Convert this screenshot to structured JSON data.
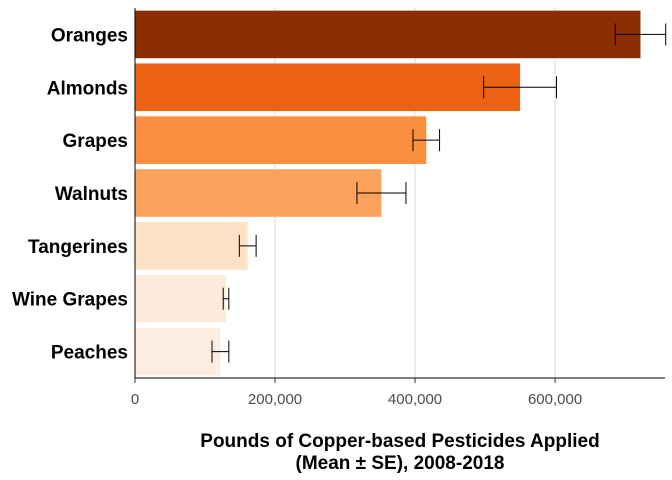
{
  "chart_data": {
    "type": "bar",
    "orientation": "horizontal",
    "title": "",
    "xlabel": [
      "Pounds of Copper-based Pesticides Applied",
      "(Mean ± SE), 2008-2018"
    ],
    "ylabel": "",
    "xlim": [
      0,
      757000
    ],
    "x_ticks": [
      0,
      200000,
      400000,
      600000
    ],
    "x_tick_labels": [
      "0",
      "200,000",
      "400,000",
      "600,000"
    ],
    "grid": "vertical major gridlines",
    "categories": [
      "Oranges",
      "Almonds",
      "Grapes",
      "Walnuts",
      "Tangerines",
      "Wine Grapes",
      "Peaches"
    ],
    "values": [
      722000,
      550000,
      416000,
      352000,
      161000,
      130000,
      122000
    ],
    "errors": [
      36000,
      52000,
      19000,
      35000,
      12000,
      4000,
      12000
    ],
    "colors": [
      "#8B2E03",
      "#EB6214",
      "#FB8E3E",
      "#FDA25D",
      "#FDE2C6",
      "#FDEBDB",
      "#FDECE0"
    ]
  }
}
